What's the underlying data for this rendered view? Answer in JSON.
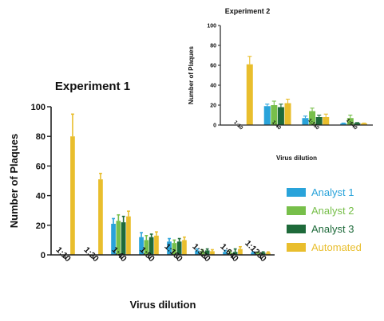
{
  "colors": {
    "analyst1": "#29A3DA",
    "analyst2": "#77BF4A",
    "analyst3": "#1E6A3A",
    "automated": "#E9BE2D"
  },
  "chart_data": [
    {
      "id": "experiment-1",
      "type": "bar",
      "title": "Experiment 1",
      "xlabel": "Virus dilution",
      "ylabel": "Number of Plaques",
      "ylim": [
        0,
        100
      ],
      "yticks": [
        0,
        20,
        40,
        60,
        80,
        100
      ],
      "grid": false,
      "categories": [
        "1:10",
        "1:20",
        "1:40",
        "1:80",
        "1:160",
        "1:320",
        "1:640",
        "1:1280"
      ],
      "series": [
        {
          "name": "Analyst 1",
          "color_key": "analyst1",
          "values": [
            null,
            null,
            21,
            12,
            9,
            3,
            2,
            1.5
          ],
          "errors": [
            null,
            null,
            3.5,
            3,
            2,
            1,
            1,
            0.5
          ]
        },
        {
          "name": "Analyst 2",
          "color_key": "analyst2",
          "values": [
            null,
            null,
            23,
            10,
            8,
            2.5,
            1.5,
            1.5
          ],
          "errors": [
            null,
            null,
            4,
            3,
            2,
            1,
            1,
            0.5
          ]
        },
        {
          "name": "Analyst 3",
          "color_key": "analyst3",
          "values": [
            null,
            null,
            22,
            12,
            9,
            3,
            2,
            1.5
          ],
          "errors": [
            null,
            null,
            4,
            2,
            2,
            1,
            2,
            0.5
          ]
        },
        {
          "name": "Automated",
          "color_key": "automated",
          "values": [
            80,
            51,
            26,
            13,
            10,
            2.5,
            4,
            1.5
          ],
          "errors": [
            15,
            4,
            3.5,
            2.5,
            2,
            1,
            1.5,
            0.5
          ]
        }
      ]
    },
    {
      "id": "experiment-2",
      "type": "bar",
      "title": "Experiment 2",
      "xlabel": "Virus dilution",
      "ylabel": "Number of Plaques",
      "ylim": [
        0,
        100
      ],
      "yticks": [
        0,
        20,
        40,
        60,
        80,
        100
      ],
      "grid": false,
      "categories": [
        "1:10",
        "1:40",
        "1:160",
        "1:640"
      ],
      "series": [
        {
          "name": "Analyst 1",
          "color_key": "analyst1",
          "values": [
            null,
            19,
            7,
            1.5
          ],
          "errors": [
            null,
            2,
            2,
            0.5
          ]
        },
        {
          "name": "Analyst 2",
          "color_key": "analyst2",
          "values": [
            null,
            20,
            14,
            7
          ],
          "errors": [
            null,
            4,
            3,
            3
          ]
        },
        {
          "name": "Analyst 3",
          "color_key": "analyst3",
          "values": [
            null,
            18,
            8,
            2
          ],
          "errors": [
            null,
            3,
            2,
            0.5
          ]
        },
        {
          "name": "Automated",
          "color_key": "automated",
          "values": [
            61,
            22,
            8,
            1.5
          ],
          "errors": [
            8,
            4,
            3,
            0.5
          ]
        }
      ]
    }
  ],
  "legend": {
    "placement": "right",
    "items": [
      {
        "label": "Analyst 1",
        "color_key": "analyst1"
      },
      {
        "label": "Analyst 2",
        "color_key": "analyst2"
      },
      {
        "label": "Analyst 3",
        "color_key": "analyst3"
      },
      {
        "label": "Automated",
        "color_key": "automated"
      }
    ]
  }
}
